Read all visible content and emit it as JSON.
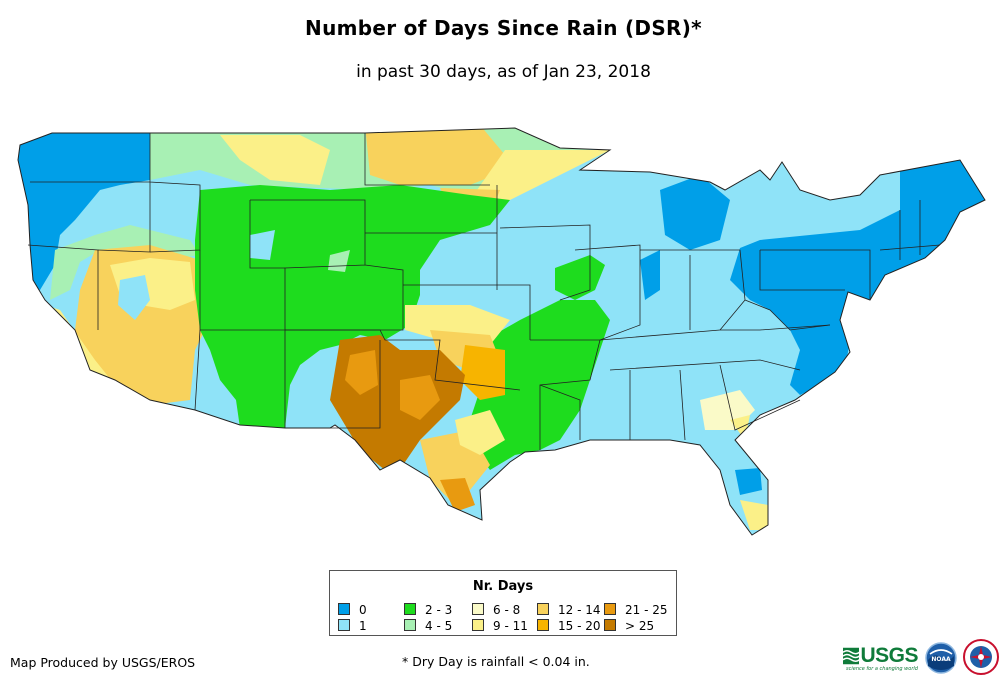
{
  "title": "Number of Days Since Rain (DSR)*",
  "subtitle": "in past 30 days, as of Jan 23, 2018",
  "legend": {
    "title": "Nr. Days",
    "items": [
      {
        "label": "0",
        "color": "#009fe8"
      },
      {
        "label": "1",
        "color": "#8fe3f8"
      },
      {
        "label": "2 - 3",
        "color": "#1edc1e"
      },
      {
        "label": "4 - 5",
        "color": "#a8f0b4"
      },
      {
        "label": "6 - 8",
        "color": "#fafac8"
      },
      {
        "label": "9 - 11",
        "color": "#fbf088"
      },
      {
        "label": "12 - 14",
        "color": "#f8d25c"
      },
      {
        "label": "15 - 20",
        "color": "#f7b400"
      },
      {
        "label": "21 - 25",
        "color": "#e89a10"
      },
      {
        "label": "> 25",
        "color": "#c47a00"
      }
    ]
  },
  "credit": "Map Produced by USGS/EROS",
  "footnote": "* Dry Day is rainfall < 0.04 in.",
  "logos": {
    "usgs": {
      "text": "USGS",
      "tagline": "science for a changing world"
    },
    "noaa": {
      "text": "NOAA"
    },
    "nws": {
      "name": "nws-logo"
    }
  }
}
